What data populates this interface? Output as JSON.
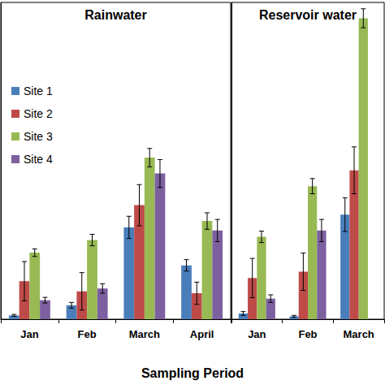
{
  "chart_data": [
    {
      "type": "bar",
      "title": "Rainwater",
      "xlabel": "Sampling Period",
      "categories": [
        "Jan",
        "Feb",
        "March",
        "April"
      ],
      "series": [
        {
          "name": "Site 1",
          "color": "#4a7ebb",
          "values": [
            1.2,
            4.4,
            29,
            17
          ],
          "errors": [
            0.3,
            0.9,
            3.5,
            1.8
          ]
        },
        {
          "name": "Site 2",
          "color": "#be4b48",
          "values": [
            12,
            8.8,
            36,
            8.2
          ],
          "errors": [
            6.2,
            5.9,
            6.5,
            3.5
          ]
        },
        {
          "name": "Site 3",
          "color": "#98b954",
          "values": [
            21,
            25,
            51,
            31
          ],
          "errors": [
            1.2,
            1.8,
            2.9,
            2.6
          ]
        },
        {
          "name": "Site 4",
          "color": "#7d60a0",
          "values": [
            6,
            9.7,
            46,
            28
          ],
          "errors": [
            0.9,
            1.5,
            4.4,
            3.5
          ]
        }
      ],
      "ylim": [
        0,
        100
      ],
      "tick_labels": "x",
      "grid": false,
      "legend": "upper left"
    },
    {
      "type": "bar",
      "title": "Reservoir water",
      "categories": [
        "Jan",
        "Feb",
        "March"
      ],
      "series": [
        {
          "name": "Site 1",
          "color": "#4a7ebb",
          "values": [
            1.8,
            0.9,
            33
          ],
          "errors": [
            0.6,
            0.3,
            5.3
          ]
        },
        {
          "name": "Site 2",
          "color": "#be4b48",
          "values": [
            13,
            15,
            47
          ],
          "errors": [
            6.2,
            5.9,
            7.4
          ]
        },
        {
          "name": "Site 3",
          "color": "#98b954",
          "values": [
            26,
            42,
            95
          ],
          "errors": [
            1.8,
            2.4,
            3
          ]
        },
        {
          "name": "Site 4",
          "color": "#7d60a0",
          "values": [
            6.5,
            28,
            null
          ],
          "errors": [
            1.2,
            3.5,
            null
          ]
        }
      ],
      "ylim": [
        0,
        100
      ],
      "tick_labels": "x",
      "grid": false
    }
  ]
}
